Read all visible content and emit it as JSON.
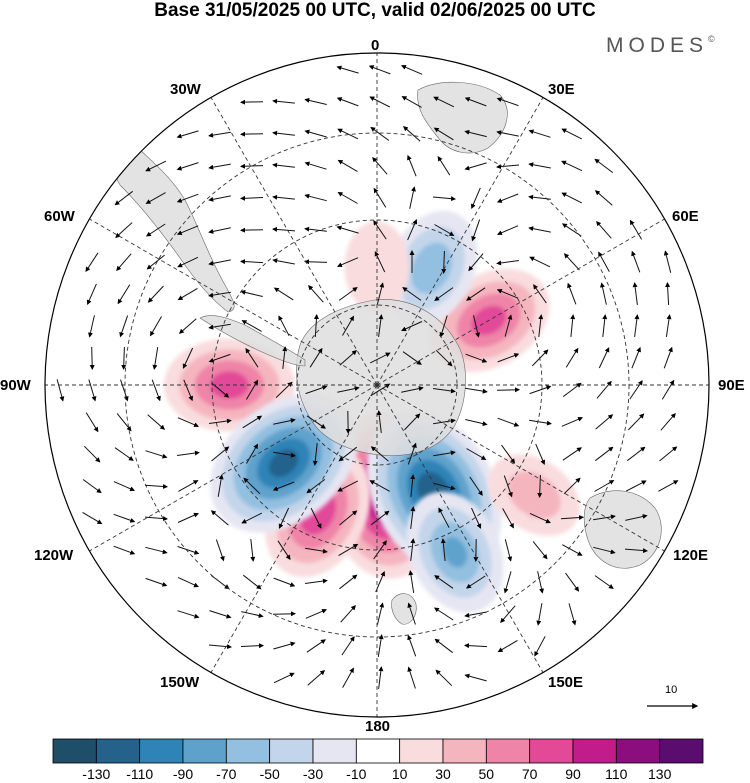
{
  "title": "Base 31/05/2025 00 UTC, valid 02/06/2025 00 UTC",
  "brand": "MODES",
  "brand_mark": "©",
  "map": {
    "projection": "south-polar-stereographic",
    "land_color": "#dedede",
    "ocean_color": "#ffffff",
    "longitude_labels": {
      "n": "0",
      "nne": "30E",
      "ene": "60E",
      "e": "90E",
      "ese": "120E",
      "sse": "150E",
      "s": "180",
      "ssw": "150W",
      "wsw": "120W",
      "w": "90W",
      "wnw": "60W",
      "nnw": "30W"
    },
    "anomaly_centers": [
      {
        "lon": 175,
        "lat": -60,
        "value": 118
      },
      {
        "lon": 152,
        "lat": -57,
        "value": -124
      },
      {
        "lon": -155,
        "lat": -52,
        "value": 82
      },
      {
        "lon": -90,
        "lat": -50,
        "value": 75
      },
      {
        "lon": 60,
        "lat": -55,
        "value": 74
      },
      {
        "lon": -130,
        "lat": -57,
        "value": -115
      },
      {
        "lon": 25,
        "lat": -55,
        "value": -62
      },
      {
        "lon": 155,
        "lat": -40,
        "value": -70
      },
      {
        "lon": 125,
        "lat": -38,
        "value": 38
      },
      {
        "lon": 0,
        "lat": -58,
        "value": 28
      }
    ]
  },
  "wind_reference": {
    "value": "10"
  },
  "colorbar": {
    "colors": [
      "#1f4e68",
      "#24628c",
      "#2e83b7",
      "#5ea2cc",
      "#93bfe0",
      "#c3d5ea",
      "#e6e6f3",
      "#ffffff",
      "#f9dcde",
      "#f5b5bf",
      "#ef84a8",
      "#e24a98",
      "#c11c89",
      "#8c0e7e",
      "#5a0d6e"
    ],
    "tick_labels": [
      "-130",
      "-110",
      "-90",
      "-70",
      "-50",
      "-30",
      "-10",
      "10",
      "30",
      "50",
      "70",
      "90",
      "110",
      "130"
    ]
  }
}
